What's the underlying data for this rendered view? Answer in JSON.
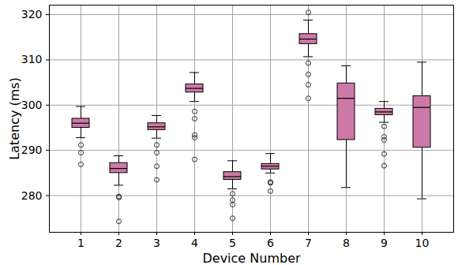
{
  "chart_data": {
    "type": "box",
    "x_label": "Device Number",
    "y_label": "Latency (ms)",
    "categories": [
      "1",
      "2",
      "3",
      "4",
      "5",
      "6",
      "7",
      "8",
      "9",
      "10"
    ],
    "color": "#cc79a7",
    "grid": true,
    "ylim": [
      271.9,
      322.1
    ],
    "yticks": [
      280,
      290,
      300,
      310,
      320
    ],
    "boxes": [
      {
        "whisker_low": 292.8,
        "q1": 295.0,
        "median": 296.0,
        "q3": 297.0,
        "whisker_high": 299.7,
        "outliers": [
          291.2,
          289.5,
          286.9
        ]
      },
      {
        "whisker_low": 282.3,
        "q1": 285.0,
        "median": 286.0,
        "q3": 287.2,
        "whisker_high": 288.8,
        "outliers": [
          279.8,
          279.6,
          274.3
        ]
      },
      {
        "whisker_low": 292.7,
        "q1": 294.5,
        "median": 295.2,
        "q3": 296.0,
        "whisker_high": 297.7,
        "outliers": [
          291.2,
          289.5,
          286.5,
          283.5
        ]
      },
      {
        "whisker_low": 300.8,
        "q1": 302.8,
        "median": 303.7,
        "q3": 304.6,
        "whisker_high": 307.2,
        "outliers": [
          298.6,
          297.0,
          293.4,
          292.8,
          288.0
        ]
      },
      {
        "whisker_low": 281.5,
        "q1": 283.5,
        "median": 284.2,
        "q3": 285.2,
        "whisker_high": 287.7,
        "outliers": [
          280.4,
          279.0,
          278.0,
          275.0
        ]
      },
      {
        "whisker_low": 285.0,
        "q1": 285.8,
        "median": 286.5,
        "q3": 287.0,
        "whisker_high": 289.3,
        "outliers": [
          283.0,
          282.8,
          281.0
        ]
      },
      {
        "whisker_low": 310.7,
        "q1": 313.5,
        "median": 314.6,
        "q3": 315.7,
        "whisker_high": 318.8,
        "outliers": [
          320.5,
          309.3,
          306.8,
          304.5,
          301.5
        ]
      },
      {
        "whisker_low": 281.8,
        "q1": 292.3,
        "median": 301.5,
        "q3": 304.8,
        "whisker_high": 308.7,
        "outliers": []
      },
      {
        "whisker_low": 296.2,
        "q1": 297.8,
        "median": 298.5,
        "q3": 299.2,
        "whisker_high": 300.8,
        "outliers": [
          295.3,
          293.0,
          292.3,
          289.2,
          286.6
        ]
      },
      {
        "whisker_low": 279.3,
        "q1": 290.6,
        "median": 299.5,
        "q3": 302.0,
        "whisker_high": 309.5,
        "outliers": []
      }
    ]
  }
}
